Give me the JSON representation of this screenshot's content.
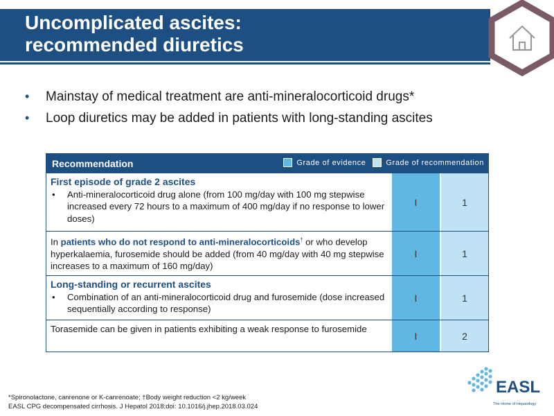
{
  "slide": {
    "title_line1": "Uncomplicated ascites:",
    "title_line2": "recommended diuretics",
    "home_icon": "home-icon"
  },
  "bullets": [
    "Mainstay of medical treatment are anti-mineralocorticoid drugs*",
    "Loop diuretics may be added in patients with long-standing ascites"
  ],
  "table": {
    "header": "Recommendation",
    "legend": {
      "evidence": "Grade of evidence",
      "recommendation": "Grade of recommendation"
    },
    "rows": [
      {
        "title": "First episode of grade 2 ascites",
        "bullet": "Anti-mineralocorticoid drug alone (from 100 mg/day with 100 mg stepwise increased every 72 hours to a maximum of 400 mg/day if no response to lower doses)",
        "evidence": "I",
        "recommendation": "1"
      },
      {
        "pre": "In ",
        "highlight": "patients who do not respond to anti-mineralocorticoids",
        "sup": "†",
        "post": " or who develop hyperkalaemia, furosemide should be added (from 40 mg/day with 40 mg stepwise increases to a maximum of 160 mg/day)",
        "evidence": "I",
        "recommendation": "1"
      },
      {
        "title": "Long-standing or recurrent ascites",
        "bullet": "Combination of an anti-mineralocorticoid drug and furosemide (dose increased sequentially according to response)",
        "evidence": "I",
        "recommendation": "1"
      },
      {
        "text": "Torasemide can be given in patients exhibiting a weak response to furosemide",
        "evidence": "I",
        "recommendation": "2"
      }
    ]
  },
  "footnote": {
    "line1": "*Spironolactone, canrenone or K-canrenoate; †Body weight reduction <2 kg/week",
    "line2": "EASL CPG decompensated cirrhosis. J Hepatol 2018;doi: 10.1016/j.jhep.2018.03.024"
  },
  "logo": {
    "name": "EASL",
    "tagline": "The Home of Hepatology"
  },
  "colors": {
    "brand_blue": "#1e4f83",
    "evidence_blue": "#5fb7e2",
    "recommendation_blue": "#bfe3f4",
    "hex_frame": "#7a5a66"
  }
}
